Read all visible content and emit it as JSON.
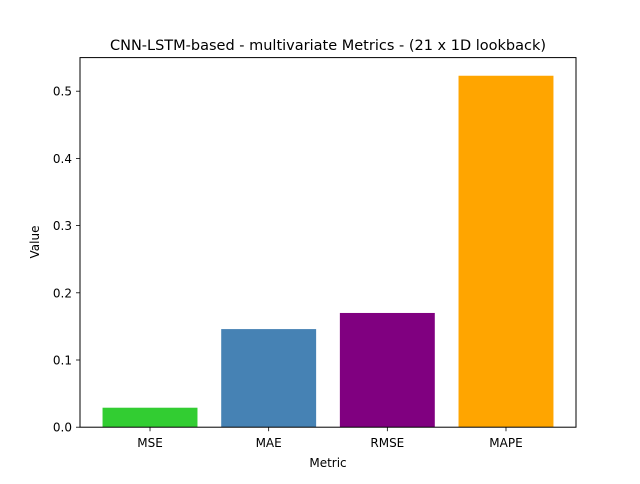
{
  "chart_data": {
    "type": "bar",
    "title": "CNN-LSTM-based - multivariate Metrics - (21 x 1D lookback)",
    "xlabel": "Metric",
    "ylabel": "Value",
    "categories": [
      "MSE",
      "MAE",
      "RMSE",
      "MAPE"
    ],
    "values": [
      0.029,
      0.146,
      0.17,
      0.523
    ],
    "colors": [
      "#32cd32",
      "#4682b4",
      "#800080",
      "#ffa500"
    ],
    "ylim": [
      0,
      0.55
    ],
    "yticks": [
      0.0,
      0.1,
      0.2,
      0.3,
      0.4,
      0.5
    ],
    "ytick_labels": [
      "0.0",
      "0.1",
      "0.2",
      "0.3",
      "0.4",
      "0.5"
    ],
    "grid": false,
    "legend": "none"
  }
}
